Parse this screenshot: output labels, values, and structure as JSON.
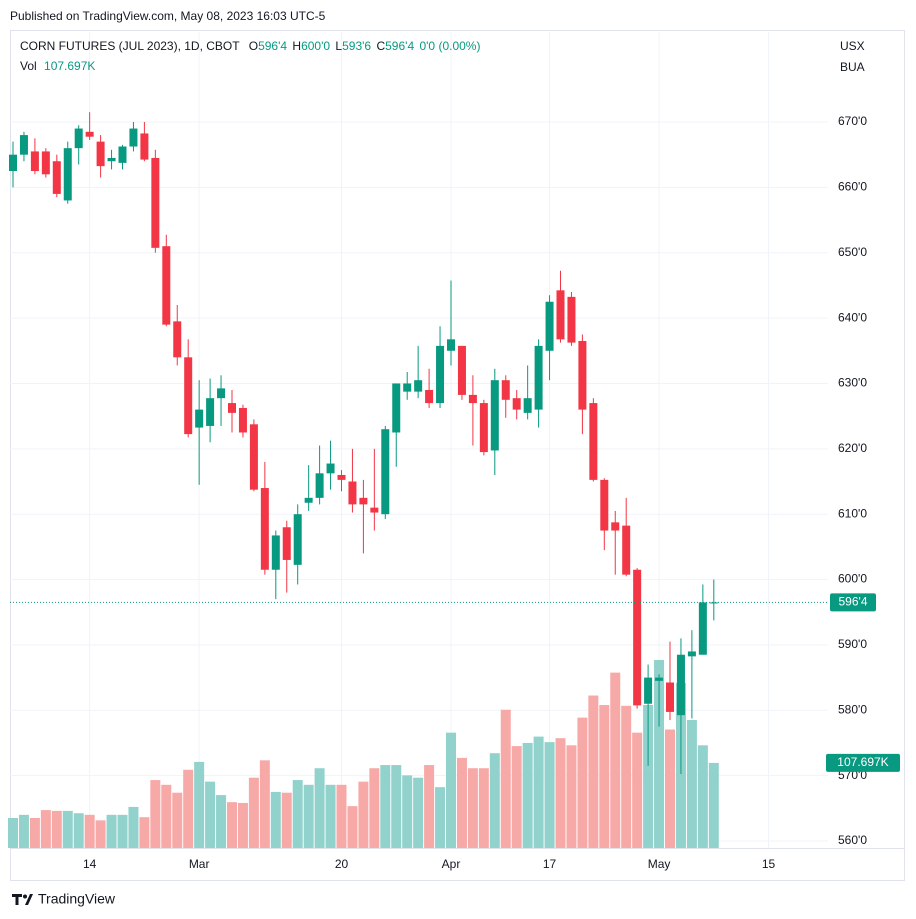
{
  "header": {
    "published": "Published on TradingView.com, May 08, 2023 16:03 UTC-5",
    "brand": "TradingView"
  },
  "chart_data": {
    "type": "candlestick",
    "title": "CORN FUTURES (JUL 2023), 1D, CBOT",
    "legend": {
      "open_key": "O",
      "open": {
        "value": 596.5,
        "label": "596'4"
      },
      "high_key": "H",
      "high": {
        "value": 600,
        "label": "600'0"
      },
      "low_key": "L",
      "low": {
        "value": 593.75,
        "label": "593'6"
      },
      "close_key": "C",
      "close": {
        "value": 596.5,
        "label": "596'4"
      },
      "change": "0'0 (0.00%)",
      "volume_key": "Vol",
      "volume": {
        "value": 107.697,
        "label": "107.697K"
      }
    },
    "currency": "USX",
    "unit": "BUA",
    "up_color": "#089981",
    "down_color": "#f23645",
    "categories": [
      null,
      null,
      null,
      null,
      null,
      null,
      null,
      "14",
      null,
      null,
      null,
      null,
      null,
      null,
      null,
      null,
      null,
      "Mar",
      null,
      null,
      null,
      null,
      null,
      null,
      null,
      null,
      null,
      null,
      null,
      null,
      "20",
      null,
      null,
      null,
      null,
      null,
      null,
      null,
      null,
      null,
      "Apr",
      null,
      null,
      null,
      null,
      null,
      null,
      null,
      null,
      "17",
      null,
      null,
      null,
      null,
      null,
      null,
      null,
      null,
      null,
      "May",
      null,
      null,
      null,
      null,
      null,
      null,
      null,
      null,
      null,
      "15",
      null,
      null,
      null,
      null,
      null
    ],
    "open": [
      662.5,
      665,
      665.5,
      665.5,
      664,
      658,
      666,
      668.5,
      667,
      664,
      663.75,
      666.25,
      668.25,
      664.5,
      651,
      639.5,
      634,
      623.25,
      623.5,
      627.75,
      627,
      626.25,
      623.75,
      614,
      601.5,
      608,
      602.25,
      611.75,
      612.5,
      616.25,
      616,
      615,
      612.5,
      611,
      610,
      622.5,
      628.75,
      628.75,
      629,
      627,
      635,
      635.75,
      628.25,
      627,
      619.75,
      630.5,
      627.75,
      625.5,
      626,
      635,
      644.25,
      643.25,
      636.5,
      627,
      615.25,
      608.75,
      608.25,
      601.5,
      581,
      584.5,
      584.25,
      579.25,
      588.25,
      588.5,
      596.5,
      null,
      null,
      null,
      null,
      null,
      null,
      null,
      null,
      null,
      null
    ],
    "high": [
      667,
      668.5,
      667.5,
      666,
      665,
      667,
      669.5,
      671.5,
      668,
      665.75,
      666.5,
      670,
      670,
      665.75,
      652.75,
      642,
      636.75,
      630.5,
      630.75,
      631.25,
      629,
      626.75,
      624.5,
      618,
      607.5,
      609,
      611.5,
      617.5,
      620.5,
      621.25,
      616.75,
      620,
      615.25,
      620,
      623.5,
      630,
      631.75,
      635.75,
      632.25,
      638.75,
      645.75,
      635.75,
      631.25,
      627.5,
      632.25,
      631.25,
      629,
      632.75,
      636.75,
      643.5,
      647.25,
      644,
      637.5,
      627.75,
      615.5,
      610.5,
      612.5,
      601.75,
      587,
      585.5,
      590.5,
      591,
      592.25,
      599.25,
      600,
      null,
      null,
      null,
      null,
      null,
      null,
      null,
      null,
      null,
      null
    ],
    "low": [
      660,
      664,
      662,
      661.5,
      658.5,
      657.5,
      663.5,
      667.25,
      661.5,
      662.75,
      662.75,
      665.5,
      664,
      650,
      638.75,
      632.75,
      621.75,
      614.5,
      621,
      623.5,
      622.5,
      621.75,
      613.5,
      600.75,
      597,
      598,
      599.25,
      610.5,
      611.5,
      613.75,
      613.5,
      610.25,
      604,
      607.5,
      609.25,
      617.25,
      627.5,
      627.75,
      626.25,
      626.25,
      632.75,
      627.5,
      620.5,
      619,
      616,
      624.75,
      624.5,
      624.5,
      623.25,
      630.5,
      636.25,
      635.75,
      622.25,
      615,
      604.5,
      600.75,
      600.5,
      580.25,
      571.5,
      577.5,
      578.5,
      570.25,
      578.75,
      588.5,
      593.75,
      null,
      null,
      null,
      null,
      null,
      null,
      null,
      null,
      null,
      null
    ],
    "close": [
      665,
      668,
      662.5,
      662,
      659,
      666,
      669,
      667.75,
      663.25,
      664.5,
      666.25,
      669,
      664.25,
      650.75,
      639,
      634,
      622.25,
      626,
      627.75,
      629.25,
      625.5,
      622.5,
      613.75,
      601.5,
      606.75,
      603,
      610,
      612.5,
      616.25,
      617.75,
      615.25,
      611.5,
      611.5,
      610.25,
      623,
      630,
      630,
      630.5,
      627,
      635.75,
      636.75,
      628.25,
      627,
      619.5,
      630.5,
      627.5,
      626,
      627.75,
      635.75,
      642.5,
      636.75,
      636.25,
      626,
      615.25,
      607.5,
      607.5,
      600.75,
      580.75,
      585,
      585,
      579.75,
      588.5,
      589,
      596.5,
      596.5,
      null,
      null,
      null,
      null,
      null,
      null,
      null,
      null,
      null,
      null
    ],
    "volume": {
      "values": [
        38,
        42,
        38,
        48,
        47,
        47,
        44,
        42,
        35,
        42,
        42,
        52,
        39,
        86,
        80,
        70,
        99,
        109,
        84,
        67,
        58,
        57,
        89,
        111,
        71,
        70,
        86,
        80,
        101,
        80,
        80,
        53,
        84,
        101,
        105,
        105,
        92,
        89,
        105,
        77,
        146,
        114,
        101,
        101,
        120,
        175,
        129,
        133,
        141,
        134,
        139,
        130,
        165,
        193,
        181,
        222,
        180,
        146,
        181,
        238,
        150,
        209,
        162,
        130,
        107.697,
        null,
        null,
        null,
        null,
        null,
        null,
        null,
        null,
        null,
        null
      ],
      "ylim": [
        0,
        400
      ],
      "up_color": "#92d2cc",
      "down_color": "#f7a9a7"
    },
    "last_price": {
      "value": 596.5,
      "label": "596'4"
    },
    "ylim": [
      558.93,
      683.77
    ],
    "yticks": [
      {
        "value": 560,
        "label": "560'0"
      },
      {
        "value": 570,
        "label": "570'0"
      },
      {
        "value": 580,
        "label": "580'0"
      },
      {
        "value": 590,
        "label": "590'0"
      },
      {
        "value": 600,
        "label": "600'0"
      },
      {
        "value": 610,
        "label": "610'0"
      },
      {
        "value": 620,
        "label": "620'0"
      },
      {
        "value": 630,
        "label": "630'0"
      },
      {
        "value": 640,
        "label": "640'0"
      },
      {
        "value": 650,
        "label": "650'0"
      },
      {
        "value": 660,
        "label": "660'0"
      },
      {
        "value": 670,
        "label": "670'0"
      }
    ],
    "grid": true
  }
}
